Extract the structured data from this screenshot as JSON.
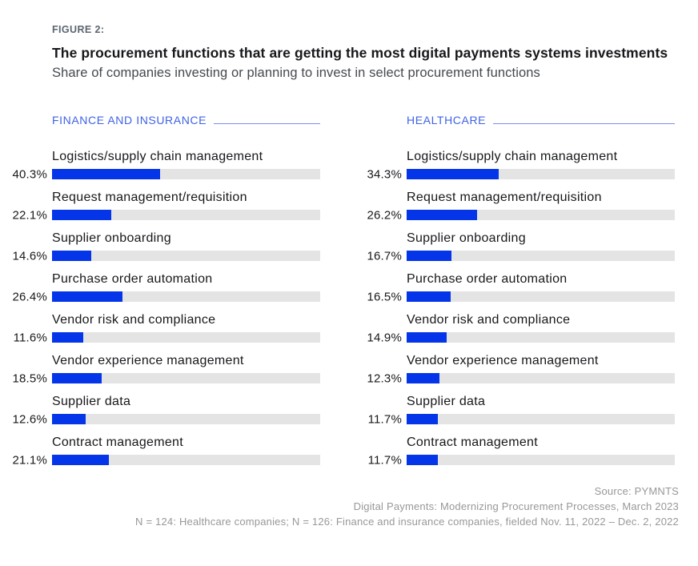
{
  "figure": {
    "label": "FIGURE 2:",
    "title": "The procurement functions that are getting the most digital payments systems investments",
    "subtitle": "Share of companies investing or planning to invest in select procurement functions"
  },
  "columns": [
    {
      "header": "FINANCE AND INSURANCE",
      "rows": [
        {
          "label": "Logistics/supply chain management",
          "pct_label": "40.3%",
          "value": 40.3
        },
        {
          "label": "Request management/requisition",
          "pct_label": "22.1%",
          "value": 22.1
        },
        {
          "label": "Supplier onboarding",
          "pct_label": "14.6%",
          "value": 14.6
        },
        {
          "label": "Purchase order automation",
          "pct_label": "26.4%",
          "value": 26.4
        },
        {
          "label": "Vendor risk and compliance",
          "pct_label": "11.6%",
          "value": 11.6
        },
        {
          "label": "Vendor experience management",
          "pct_label": "18.5%",
          "value": 18.5
        },
        {
          "label": "Supplier data",
          "pct_label": "12.6%",
          "value": 12.6
        },
        {
          "label": "Contract management",
          "pct_label": "21.1%",
          "value": 21.1
        }
      ]
    },
    {
      "header": "HEALTHCARE",
      "rows": [
        {
          "label": "Logistics/supply chain management",
          "pct_label": "34.3%",
          "value": 34.3
        },
        {
          "label": "Request management/requisition",
          "pct_label": "26.2%",
          "value": 26.2
        },
        {
          "label": "Supplier onboarding",
          "pct_label": "16.7%",
          "value": 16.7
        },
        {
          "label": "Purchase order automation",
          "pct_label": "16.5%",
          "value": 16.5
        },
        {
          "label": "Vendor risk and compliance",
          "pct_label": "14.9%",
          "value": 14.9
        },
        {
          "label": "Vendor experience management",
          "pct_label": "12.3%",
          "value": 12.3
        },
        {
          "label": "Supplier data",
          "pct_label": "11.7%",
          "value": 11.7
        },
        {
          "label": "Contract management",
          "pct_label": "11.7%",
          "value": 11.7
        }
      ]
    }
  ],
  "footer": {
    "source": "Source: PYMNTS",
    "publication": "Digital Payments: Modernizing Procurement Processes, March 2023",
    "sample": "N = 124: Healthcare companies; N = 126: Finance and insurance companies, fielded Nov. 11, 2022 – Dec. 2, 2022"
  },
  "colors": {
    "bar_fill": "#0435e8",
    "bar_track": "#e4e4e4",
    "header_blue": "#3f63e6",
    "header_line": "#7c90ea",
    "figure_label": "#5b6670",
    "title_color": "#17181b",
    "subtitle_color": "#45494e",
    "label_color": "#17181b",
    "footer_gray": "#97989a"
  },
  "chart_data": {
    "type": "bar",
    "orientation": "horizontal",
    "title": "The procurement functions that are getting the most digital payments systems investments",
    "subtitle": "Share of companies investing or planning to invest in select procurement functions",
    "categories": [
      "Logistics/supply chain management",
      "Request management/requisition",
      "Supplier onboarding",
      "Purchase order automation",
      "Vendor risk and compliance",
      "Vendor experience management",
      "Supplier data",
      "Contract management"
    ],
    "series": [
      {
        "name": "Finance and insurance",
        "values": [
          40.3,
          22.1,
          14.6,
          26.4,
          11.6,
          18.5,
          12.6,
          21.1
        ]
      },
      {
        "name": "Healthcare",
        "values": [
          34.3,
          26.2,
          16.7,
          16.5,
          14.9,
          12.3,
          11.7,
          11.7
        ]
      }
    ],
    "xlabel": "",
    "ylabel": "",
    "xlim": [
      0,
      100
    ],
    "value_unit": "%",
    "grid": false,
    "legend_position": "panel-headers",
    "layout": "two-panel side-by-side, value labels left of bars",
    "annotations": [
      "Source: PYMNTS",
      "Digital Payments: Modernizing Procurement Processes, March 2023",
      "N = 124: Healthcare companies; N = 126: Finance and insurance companies, fielded Nov. 11, 2022 – Dec. 2, 2022"
    ]
  }
}
